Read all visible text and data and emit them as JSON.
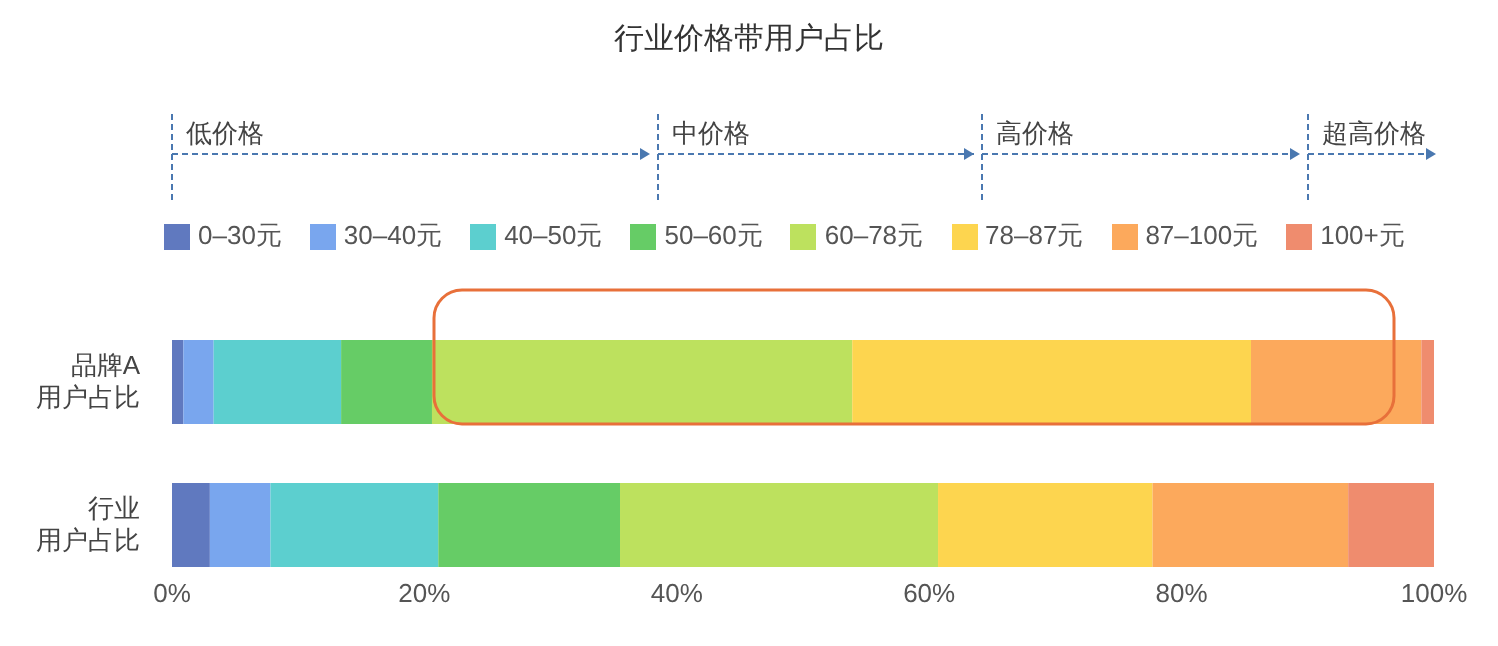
{
  "chart_data": {
    "type": "bar",
    "orientation": "horizontal",
    "stacked": true,
    "title": "行业价格带用户占比",
    "categories": [
      "品牌A用户占比",
      "行业用户占比"
    ],
    "series": [
      {
        "name": "0–30元",
        "color": "#6079bf",
        "values": [
          0.9,
          3.0
        ]
      },
      {
        "name": "30–40元",
        "color": "#79a6ee",
        "values": [
          2.4,
          4.8
        ]
      },
      {
        "name": "40–50元",
        "color": "#5ccfcf",
        "values": [
          10.1,
          13.3
        ]
      },
      {
        "name": "50–60元",
        "color": "#66cc66",
        "values": [
          7.2,
          14.4
        ]
      },
      {
        "name": "60–78元",
        "color": "#bde15e",
        "values": [
          33.3,
          25.2
        ]
      },
      {
        "name": "78–87元",
        "color": "#fdd54f",
        "values": [
          31.6,
          17.0
        ]
      },
      {
        "name": "87–100元",
        "color": "#fca95c",
        "values": [
          13.5,
          15.5
        ]
      },
      {
        "name": "100+元",
        "color": "#ef8c6e",
        "values": [
          1.0,
          6.8
        ]
      }
    ],
    "xlim": [
      0,
      100
    ],
    "xticks": [
      {
        "value": 0,
        "label": "0%"
      },
      {
        "value": 20,
        "label": "20%"
      },
      {
        "value": 40,
        "label": "40%"
      },
      {
        "value": 60,
        "label": "60%"
      },
      {
        "value": 80,
        "label": "80%"
      },
      {
        "value": 100,
        "label": "100%"
      }
    ],
    "annotations": [
      "低价格",
      "中价格",
      "高价格",
      "超高价格"
    ],
    "legend": "top",
    "grid": false
  }
}
